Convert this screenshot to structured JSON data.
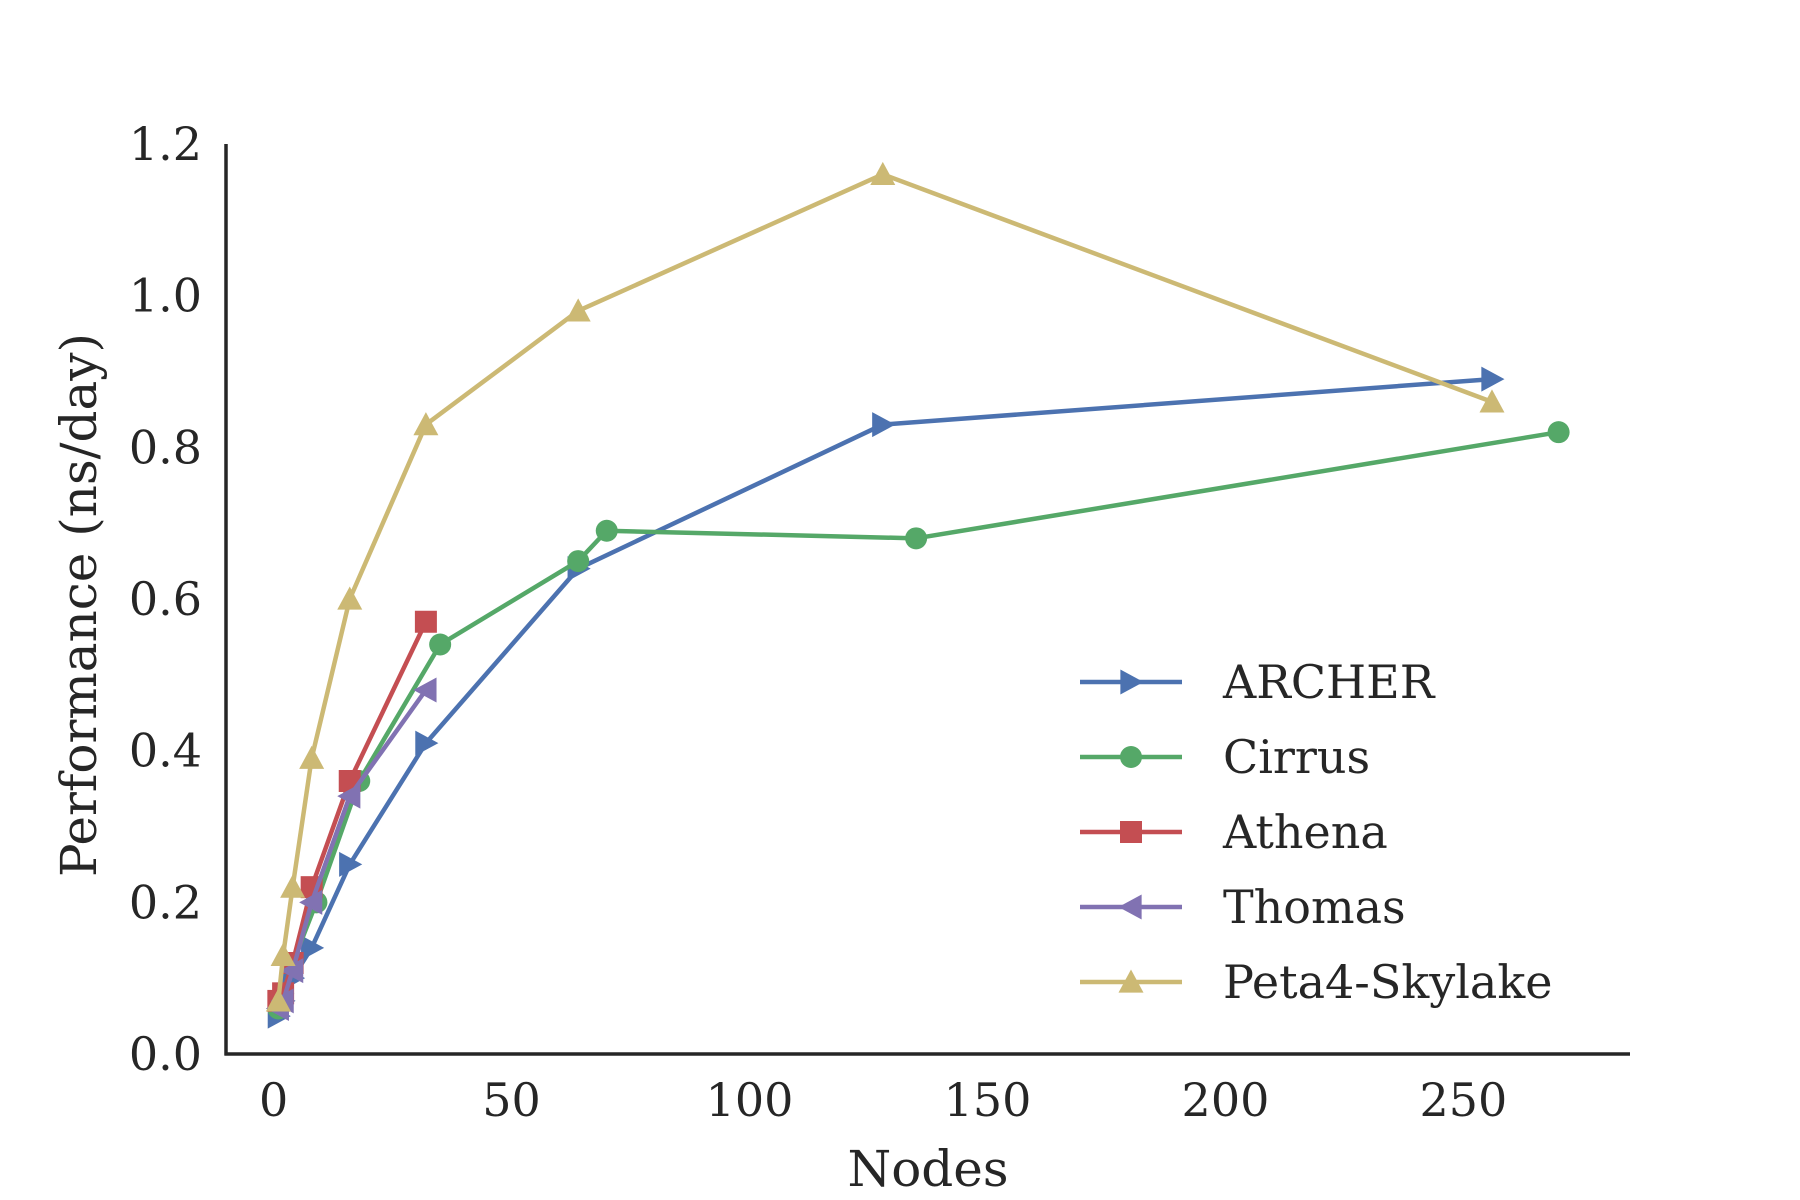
{
  "chart_data": {
    "type": "line",
    "title": "",
    "xlabel": "Nodes",
    "ylabel": "Performance (ns/day)",
    "xlim": [
      -10,
      285
    ],
    "ylim": [
      0,
      1.2
    ],
    "xticks": [
      0,
      50,
      100,
      150,
      200,
      250
    ],
    "yticks": [
      0.0,
      0.2,
      0.4,
      0.6,
      0.8,
      1.0,
      1.2
    ],
    "xtick_labels": [
      "0",
      "50",
      "100",
      "150",
      "200",
      "250"
    ],
    "ytick_labels": [
      "0.0",
      "0.2",
      "0.4",
      "0.6",
      "0.8",
      "1.0",
      "1.2"
    ],
    "grid": false,
    "legend_position": "lower-right",
    "series": [
      {
        "name": "ARCHER",
        "color": "#4c72b0",
        "marker": "triangle-right",
        "x": [
          1,
          2,
          4,
          8,
          16,
          32,
          64,
          128,
          256
        ],
        "y": [
          0.05,
          0.07,
          0.1,
          0.14,
          0.25,
          0.41,
          0.64,
          0.83,
          0.89
        ]
      },
      {
        "name": "Cirrus",
        "color": "#55a868",
        "marker": "circle",
        "x": [
          1,
          2,
          4,
          9,
          18,
          35,
          64,
          70,
          135,
          270
        ],
        "y": [
          0.06,
          0.08,
          0.12,
          0.2,
          0.36,
          0.54,
          0.65,
          0.69,
          0.68,
          0.82
        ]
      },
      {
        "name": "Athena",
        "color": "#c44e52",
        "marker": "square",
        "x": [
          1,
          2,
          4,
          8,
          16,
          32
        ],
        "y": [
          0.07,
          0.08,
          0.12,
          0.22,
          0.36,
          0.57
        ]
      },
      {
        "name": "Thomas",
        "color": "#8172b2",
        "marker": "triangle-left",
        "x": [
          1,
          2,
          4,
          8,
          16,
          32
        ],
        "y": [
          0.06,
          0.07,
          0.11,
          0.2,
          0.34,
          0.48
        ]
      },
      {
        "name": "Peta4-Skylake",
        "color": "#ccb974",
        "marker": "triangle-up",
        "x": [
          1,
          2,
          4,
          8,
          16,
          32,
          64,
          128,
          256
        ],
        "y": [
          0.07,
          0.13,
          0.22,
          0.39,
          0.6,
          0.83,
          0.98,
          1.16,
          0.86
        ]
      }
    ]
  }
}
